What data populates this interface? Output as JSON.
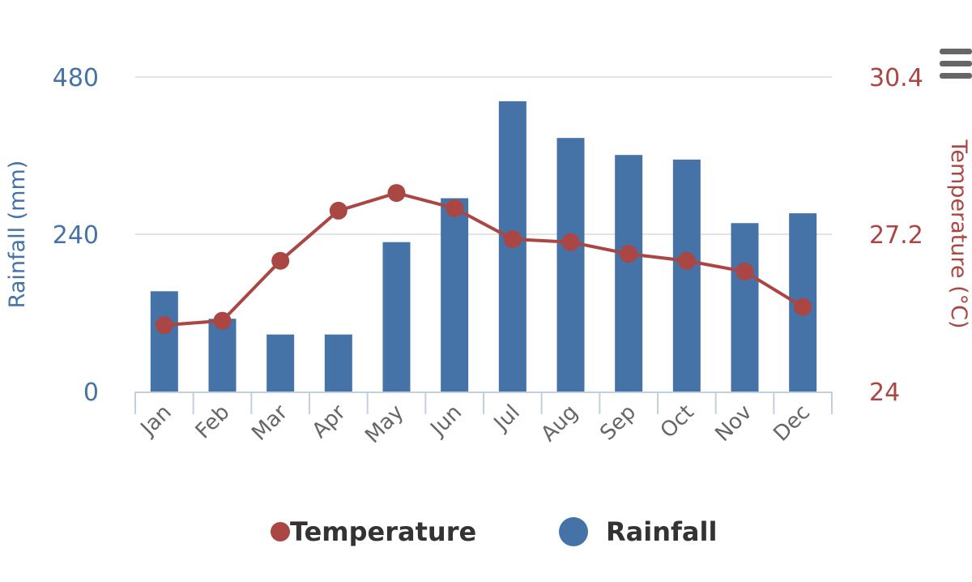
{
  "chart_data": {
    "type": "bar+line",
    "categories": [
      "Jan",
      "Feb",
      "Mar",
      "Apr",
      "May",
      "Jun",
      "Jul",
      "Aug",
      "Sep",
      "Oct",
      "Nov",
      "Dec"
    ],
    "series": [
      {
        "name": "Rainfall",
        "type": "bar",
        "axis": "left",
        "color": "#4572A7",
        "values": [
          153,
          111,
          87,
          87,
          228,
          295,
          443,
          387,
          361,
          354,
          257,
          272
        ]
      },
      {
        "name": "Temperature",
        "type": "line",
        "axis": "right",
        "color": "#AA4643",
        "values": [
          25.35,
          25.44,
          26.66,
          27.68,
          28.04,
          27.73,
          27.1,
          27.04,
          26.8,
          26.66,
          26.44,
          25.72
        ]
      }
    ],
    "y_left": {
      "label": "Rainfall (mm)",
      "ticks": [
        "0",
        "240",
        "480"
      ],
      "range": [
        0,
        480
      ],
      "color": "#4572A7"
    },
    "y_right": {
      "label": "Temperature (°C)",
      "ticks": [
        "24",
        "27.2",
        "30.4"
      ],
      "range": [
        24,
        30.4
      ],
      "color": "#AA4643"
    },
    "grid": true,
    "legend": {
      "placement": "bottom",
      "items": [
        "Temperature",
        "Rainfall"
      ]
    }
  },
  "menu_icon": "hamburger-menu-icon"
}
